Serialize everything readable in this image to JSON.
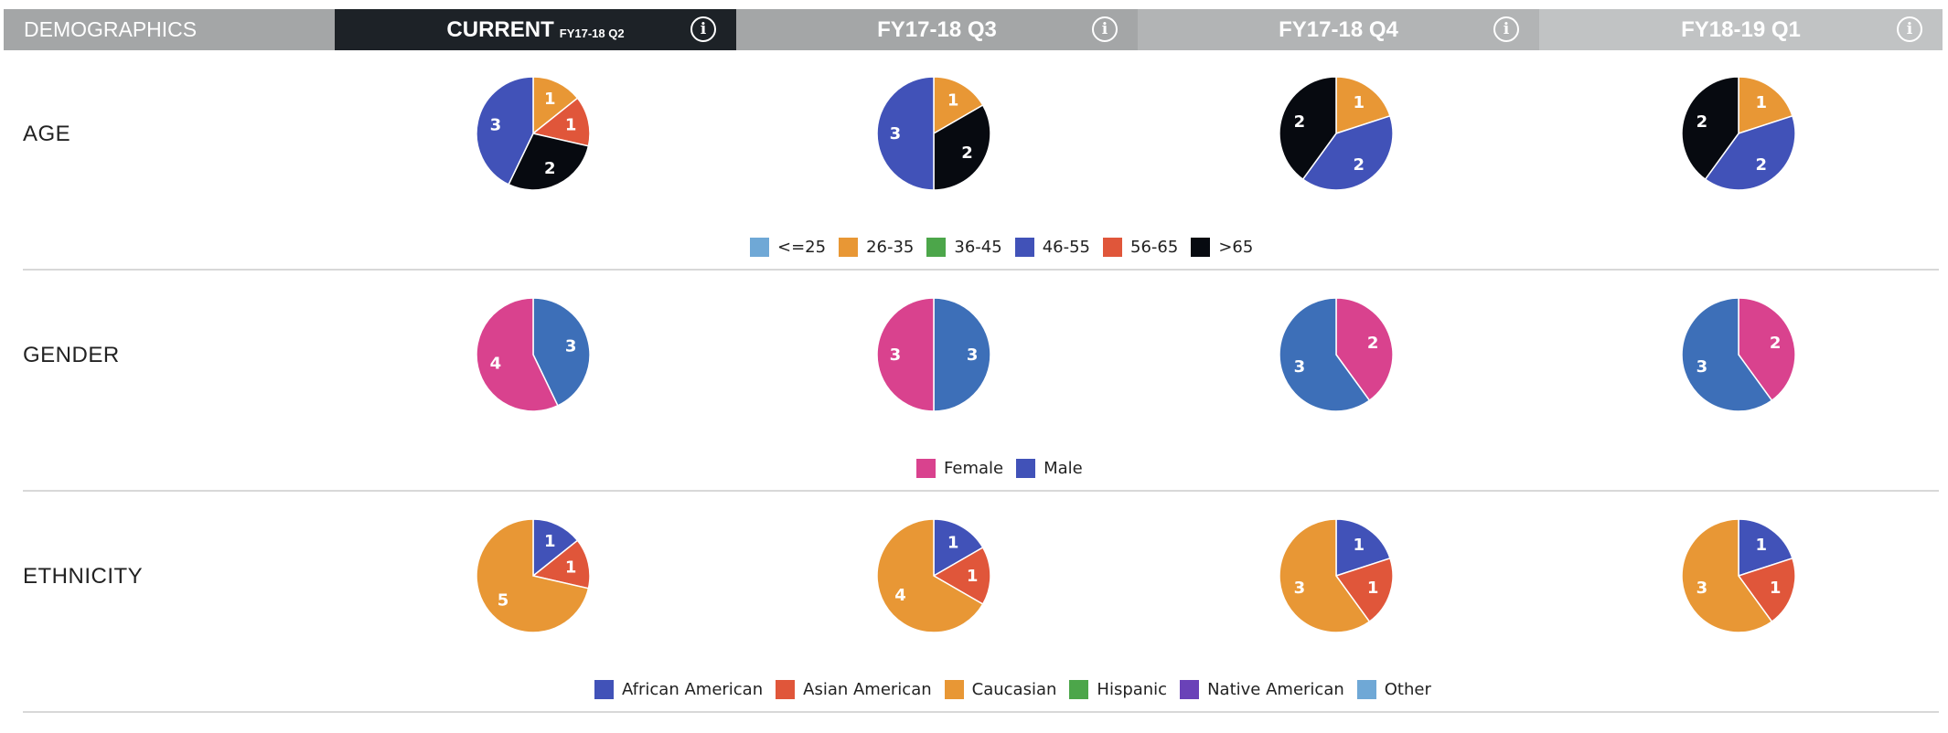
{
  "header": {
    "demographics": "DEMOGRAPHICS",
    "current": "CURRENT",
    "current_sub": "FY17-18 Q2",
    "q3": "FY17-18 Q3",
    "q4": "FY17-18 Q4",
    "q1": "FY18-19 Q1",
    "info_glyph": "i"
  },
  "rows": {
    "age": "AGE",
    "gender": "GENDER",
    "ethnicity": "ETHNICITY"
  },
  "legends": {
    "age": [
      {
        "label": "<=25",
        "color": "#6fa8d6"
      },
      {
        "label": "26-35",
        "color": "#e89735"
      },
      {
        "label": "36-45",
        "color": "#4ca64a"
      },
      {
        "label": "46-55",
        "color": "#4152b8"
      },
      {
        "label": "56-65",
        "color": "#e0563a"
      },
      {
        "label": ">65",
        "color": "#070a10"
      }
    ],
    "gender": [
      {
        "label": "Female",
        "color": "#d9428e"
      },
      {
        "label": "Male",
        "color": "#4152b8"
      }
    ],
    "ethnicity": [
      {
        "label": "African American",
        "color": "#4152b8"
      },
      {
        "label": "Asian American",
        "color": "#e0563a"
      },
      {
        "label": "Caucasian",
        "color": "#e89735"
      },
      {
        "label": "Hispanic",
        "color": "#4ca64a"
      },
      {
        "label": "Native American",
        "color": "#6a42b8"
      },
      {
        "label": "Other",
        "color": "#6fa8d6"
      }
    ]
  },
  "chart_data": [
    {
      "type": "pie",
      "category": "AGE",
      "period": "FY17-18 Q2",
      "slices": [
        {
          "label": "26-35",
          "value": 1,
          "color": "#e89735"
        },
        {
          "label": "56-65",
          "value": 1,
          "color": "#e0563a"
        },
        {
          "label": ">65",
          "value": 2,
          "color": "#070a10"
        },
        {
          "label": "46-55",
          "value": 3,
          "color": "#4152b8"
        }
      ]
    },
    {
      "type": "pie",
      "category": "AGE",
      "period": "FY17-18 Q3",
      "slices": [
        {
          "label": "26-35",
          "value": 1,
          "color": "#e89735"
        },
        {
          "label": ">65",
          "value": 2,
          "color": "#070a10"
        },
        {
          "label": "46-55",
          "value": 3,
          "color": "#4152b8"
        }
      ]
    },
    {
      "type": "pie",
      "category": "AGE",
      "period": "FY17-18 Q4",
      "slices": [
        {
          "label": "26-35",
          "value": 1,
          "color": "#e89735"
        },
        {
          "label": "46-55",
          "value": 2,
          "color": "#4152b8"
        },
        {
          "label": ">65",
          "value": 2,
          "color": "#070a10"
        }
      ]
    },
    {
      "type": "pie",
      "category": "AGE",
      "period": "FY18-19 Q1",
      "slices": [
        {
          "label": "26-35",
          "value": 1,
          "color": "#e89735"
        },
        {
          "label": "46-55",
          "value": 2,
          "color": "#4152b8"
        },
        {
          "label": ">65",
          "value": 2,
          "color": "#070a10"
        }
      ]
    },
    {
      "type": "pie",
      "category": "GENDER",
      "period": "FY17-18 Q2",
      "slices": [
        {
          "label": "Male",
          "value": 3,
          "color": "#3d6fb8"
        },
        {
          "label": "Female",
          "value": 4,
          "color": "#d9428e"
        }
      ]
    },
    {
      "type": "pie",
      "category": "GENDER",
      "period": "FY17-18 Q3",
      "slices": [
        {
          "label": "Male",
          "value": 3,
          "color": "#3d6fb8"
        },
        {
          "label": "Female",
          "value": 3,
          "color": "#d9428e"
        }
      ]
    },
    {
      "type": "pie",
      "category": "GENDER",
      "period": "FY17-18 Q4",
      "slices": [
        {
          "label": "Female",
          "value": 2,
          "color": "#d9428e"
        },
        {
          "label": "Male",
          "value": 3,
          "color": "#3d6fb8"
        }
      ]
    },
    {
      "type": "pie",
      "category": "GENDER",
      "period": "FY18-19 Q1",
      "slices": [
        {
          "label": "Female",
          "value": 2,
          "color": "#d9428e"
        },
        {
          "label": "Male",
          "value": 3,
          "color": "#3d6fb8"
        }
      ]
    },
    {
      "type": "pie",
      "category": "ETHNICITY",
      "period": "FY17-18 Q2",
      "slices": [
        {
          "label": "African American",
          "value": 1,
          "color": "#4152b8"
        },
        {
          "label": "Asian American",
          "value": 1,
          "color": "#e0563a"
        },
        {
          "label": "Caucasian",
          "value": 5,
          "color": "#e89735"
        }
      ]
    },
    {
      "type": "pie",
      "category": "ETHNICITY",
      "period": "FY17-18 Q3",
      "slices": [
        {
          "label": "African American",
          "value": 1,
          "color": "#4152b8"
        },
        {
          "label": "Asian American",
          "value": 1,
          "color": "#e0563a"
        },
        {
          "label": "Caucasian",
          "value": 4,
          "color": "#e89735"
        }
      ]
    },
    {
      "type": "pie",
      "category": "ETHNICITY",
      "period": "FY17-18 Q4",
      "slices": [
        {
          "label": "African American",
          "value": 1,
          "color": "#4152b8"
        },
        {
          "label": "Asian American",
          "value": 1,
          "color": "#e0563a"
        },
        {
          "label": "Caucasian",
          "value": 3,
          "color": "#e89735"
        }
      ]
    },
    {
      "type": "pie",
      "category": "ETHNICITY",
      "period": "FY18-19 Q1",
      "slices": [
        {
          "label": "African American",
          "value": 1,
          "color": "#4152b8"
        },
        {
          "label": "Asian American",
          "value": 1,
          "color": "#e0563a"
        },
        {
          "label": "Caucasian",
          "value": 3,
          "color": "#e89735"
        }
      ]
    }
  ]
}
